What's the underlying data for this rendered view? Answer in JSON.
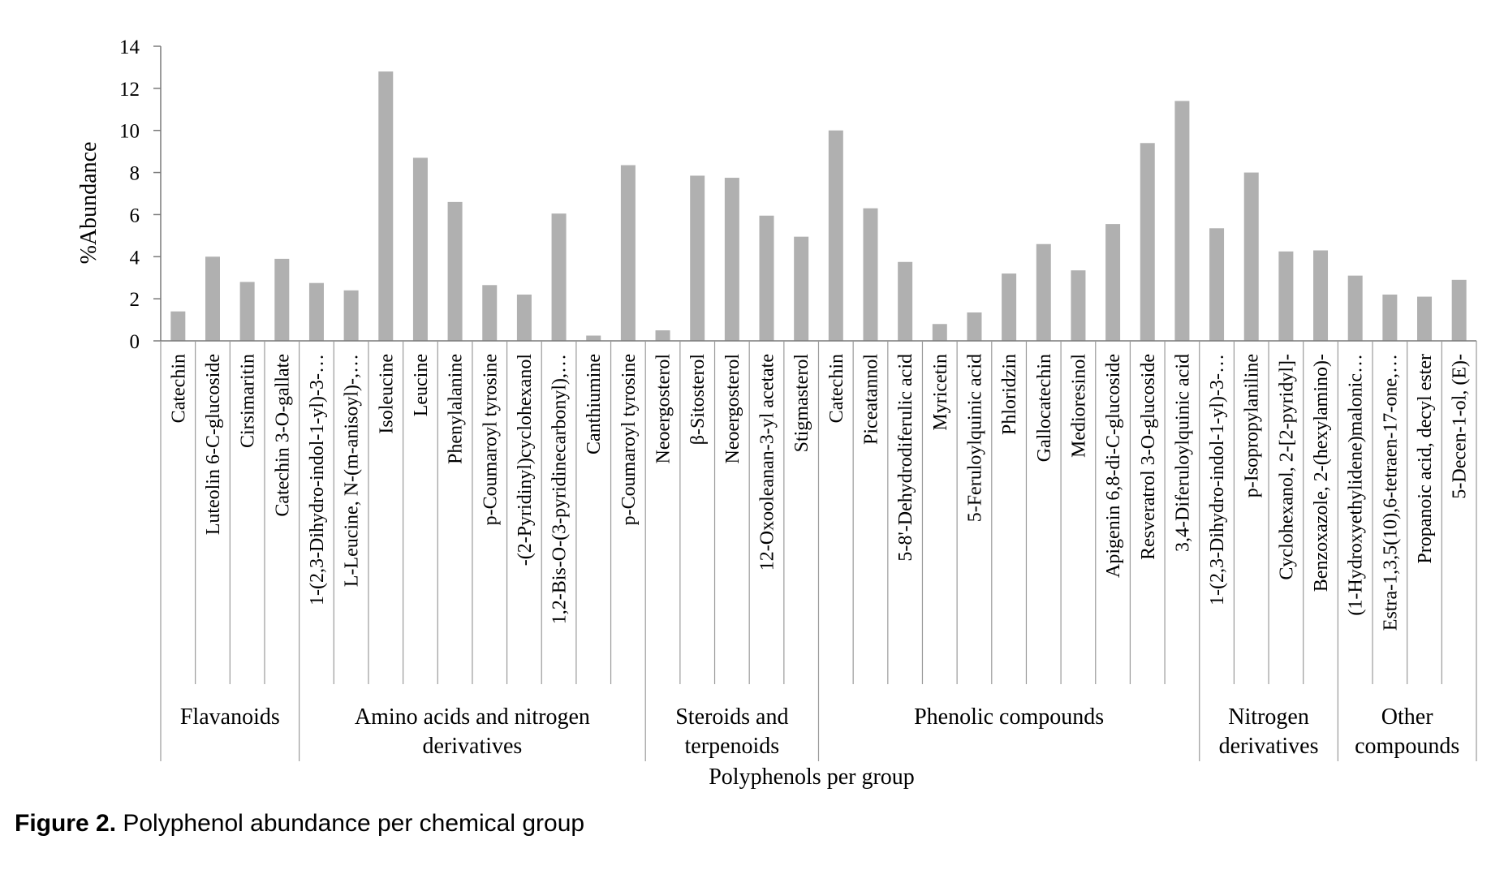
{
  "chart_data": {
    "type": "bar",
    "xlabel": "Polyphenols per group",
    "ylabel": "%Abundance",
    "ylim": [
      0,
      14
    ],
    "yticks": [
      0,
      2,
      4,
      6,
      8,
      10,
      12,
      14
    ],
    "grid": false,
    "bar_color": "#b0b0b0",
    "groups": [
      {
        "name": "Flavanoids",
        "lines": [
          "Flavanoids"
        ],
        "count": 4
      },
      {
        "name": "Amino acids and nitrogen derivatives",
        "lines": [
          "Amino acids and nitrogen",
          "derivatives"
        ],
        "count": 10
      },
      {
        "name": "Steroids and terpenoids",
        "lines": [
          "Steroids and",
          "terpenoids"
        ],
        "count": 5
      },
      {
        "name": "Phenolic compounds",
        "lines": [
          "Phenolic compounds"
        ],
        "count": 11
      },
      {
        "name": "Nitrogen derivatives",
        "lines": [
          "Nitrogen",
          "derivatives"
        ],
        "count": 4
      },
      {
        "name": "Other compounds",
        "lines": [
          "Other",
          "compounds"
        ],
        "count": 4
      }
    ],
    "categories": [
      "Catechin",
      "Luteolin 6-C-glucoside",
      "Cirsimaritin",
      "Catechin 3-O-gallate",
      "1-(2,3-Dihydro-indol-1-yl)-3-…",
      "L-Leucine, N-(m-anisoyl)-,…",
      "Isoleucine",
      "Leucine",
      "Phenylalanine",
      "p-Coumaroyl tyrosine",
      "-(2-Pyridinyl)cyclohexanol",
      "1,2-Bis-O-(3-pyridinecarbonyl),…",
      "Canthiumine",
      "p-Coumaroyl tyrosine",
      "Neoergosterol",
      "β-Sitosterol",
      "Neoergosterol",
      "12-Oxooleanan-3-yl acetate",
      "Stigmasterol",
      "Catechin",
      "Piceatannol",
      "5-8'-Dehydrodiferulic acid",
      "Myricetin",
      "5-Feruloylquinic acid",
      "Phloridzin",
      "Gallocatechin",
      "Medioresinol",
      "Apigenin 6,8-di-C-glucoside",
      "Resveratrol 3-O-glucoside",
      "3,4-Diferuloylquinic acid",
      "1-(2,3-Dihydro-indol-1-yl)-3-…",
      "p-Isopropylaniline",
      "Cyclohexanol, 2-[2-pyridyl]-",
      "Benzoxazole, 2-(hexylamino)-",
      "(1-Hydroxyethylidene)malonic…",
      "Estra-1,3,5(10),6-tetraen-17-one,…",
      "Propanoic acid, decyl ester",
      "5-Decen-1-ol, (E)-"
    ],
    "values": [
      1.4,
      4.0,
      2.8,
      3.9,
      2.75,
      2.4,
      12.8,
      8.7,
      6.6,
      2.65,
      2.2,
      6.05,
      0.25,
      8.35,
      0.5,
      7.85,
      7.75,
      5.95,
      4.95,
      10.0,
      6.3,
      3.75,
      0.8,
      1.35,
      3.2,
      4.6,
      3.35,
      5.55,
      9.4,
      11.4,
      5.35,
      8.0,
      4.25,
      4.3,
      3.1,
      2.2,
      2.1,
      2.9
    ]
  },
  "caption": {
    "label": "Figure 2.",
    "text": " Polyphenol abundance per chemical group"
  }
}
